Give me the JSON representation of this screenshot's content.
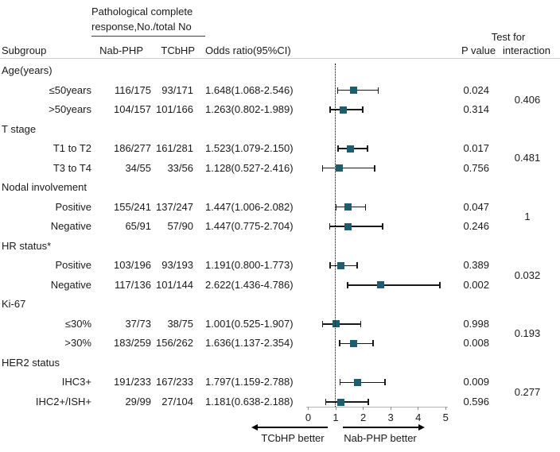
{
  "header": {
    "response_title_line1": "Pathological complete",
    "response_title_line2": "response,No./total No",
    "col_subgroup": "Subgroup",
    "col_nab_php": "Nab-PHP",
    "col_tcbhp": "TCbHP",
    "col_odds_ratio": "Odds ratio(95%CI)",
    "col_p_value": "P value",
    "col_test_for": "Test for",
    "col_interaction": "interaction"
  },
  "colors": {
    "marker": "#1e5c6e",
    "ci_line": "#1a1a1a",
    "axis_line": "#b3b3b3",
    "reference_line": "#000000",
    "text": "#1a1a1a"
  },
  "chart_data": {
    "type": "forest",
    "x_axis": {
      "min": 0,
      "max": 5,
      "ticks": [
        0,
        1,
        2,
        3,
        4,
        5
      ],
      "reference_line": 1
    },
    "footer": {
      "left_arrow_label": "TCbHP better",
      "right_arrow_label": "Nab-PHP better"
    },
    "rows": [
      {
        "kind": "group",
        "label": "Age(years)",
        "p_interaction": "0.406"
      },
      {
        "kind": "item",
        "label": "≤50years",
        "nab_php": "116/175",
        "tcbhp": "93/171",
        "or_text": "1.648(1.068-2.546)",
        "or": 1.648,
        "ci_low": 1.068,
        "ci_high": 2.546,
        "p_value": "0.024"
      },
      {
        "kind": "item",
        "label": ">50years",
        "nab_php": "104/157",
        "tcbhp": "101/166",
        "or_text": "1.263(0.802-1.989)",
        "or": 1.263,
        "ci_low": 0.802,
        "ci_high": 1.989,
        "p_value": "0.314"
      },
      {
        "kind": "group",
        "label": "T stage",
        "p_interaction": "0.481"
      },
      {
        "kind": "item",
        "label": "T1 to T2",
        "nab_php": "186/277",
        "tcbhp": "161/281",
        "or_text": "1.523(1.079-2.150)",
        "or": 1.523,
        "ci_low": 1.079,
        "ci_high": 2.15,
        "p_value": "0.017"
      },
      {
        "kind": "item",
        "label": "T3 to T4",
        "nab_php": "34/55",
        "tcbhp": "33/56",
        "or_text": "1.128(0.527-2.416)",
        "or": 1.128,
        "ci_low": 0.527,
        "ci_high": 2.416,
        "p_value": "0.756"
      },
      {
        "kind": "group",
        "label": "Nodal involvement",
        "p_interaction": "1"
      },
      {
        "kind": "item",
        "label": "Positive",
        "nab_php": "155/241",
        "tcbhp": "137/247",
        "or_text": "1.447(1.006-2.082)",
        "or": 1.447,
        "ci_low": 1.006,
        "ci_high": 2.082,
        "p_value": "0.047"
      },
      {
        "kind": "item",
        "label": "Negative",
        "nab_php": "65/91",
        "tcbhp": "57/90",
        "or_text": "1.447(0.775-2.704)",
        "or": 1.447,
        "ci_low": 0.775,
        "ci_high": 2.704,
        "p_value": "0.246"
      },
      {
        "kind": "group",
        "label": "HR status*",
        "p_interaction": "0.032"
      },
      {
        "kind": "item",
        "label": "Positive",
        "nab_php": "103/196",
        "tcbhp": "93/193",
        "or_text": "1.191(0.800-1.773)",
        "or": 1.191,
        "ci_low": 0.8,
        "ci_high": 1.773,
        "p_value": "0.389"
      },
      {
        "kind": "item",
        "label": "Negative",
        "nab_php": "117/136",
        "tcbhp": "101/144",
        "or_text": "2.622(1.436-4.786)",
        "or": 2.622,
        "ci_low": 1.436,
        "ci_high": 4.786,
        "p_value": "0.002"
      },
      {
        "kind": "group",
        "label": "Ki-67",
        "p_interaction": "0.193"
      },
      {
        "kind": "item",
        "label": "≤30%",
        "nab_php": "37/73",
        "tcbhp": "38/75",
        "or_text": "1.001(0.525-1.907)",
        "or": 1.001,
        "ci_low": 0.525,
        "ci_high": 1.907,
        "p_value": "0.998"
      },
      {
        "kind": "item",
        "label": ">30%",
        "nab_php": "183/259",
        "tcbhp": "156/262",
        "or_text": "1.636(1.137-2.354)",
        "or": 1.636,
        "ci_low": 1.137,
        "ci_high": 2.354,
        "p_value": "0.008"
      },
      {
        "kind": "group",
        "label": "HER2 status",
        "p_interaction": "0.277"
      },
      {
        "kind": "item",
        "label": "IHC3+",
        "nab_php": "191/233",
        "tcbhp": "167/233",
        "or_text": "1.797(1.159-2.788)",
        "or": 1.797,
        "ci_low": 1.159,
        "ci_high": 2.788,
        "p_value": "0.009"
      },
      {
        "kind": "item",
        "label": "IHC2+/ISH+",
        "nab_php": "29/99",
        "tcbhp": "27/104",
        "or_text": "1.181(0.638-2.188)",
        "or": 1.181,
        "ci_low": 0.638,
        "ci_high": 2.188,
        "p_value": "0.596"
      }
    ]
  }
}
